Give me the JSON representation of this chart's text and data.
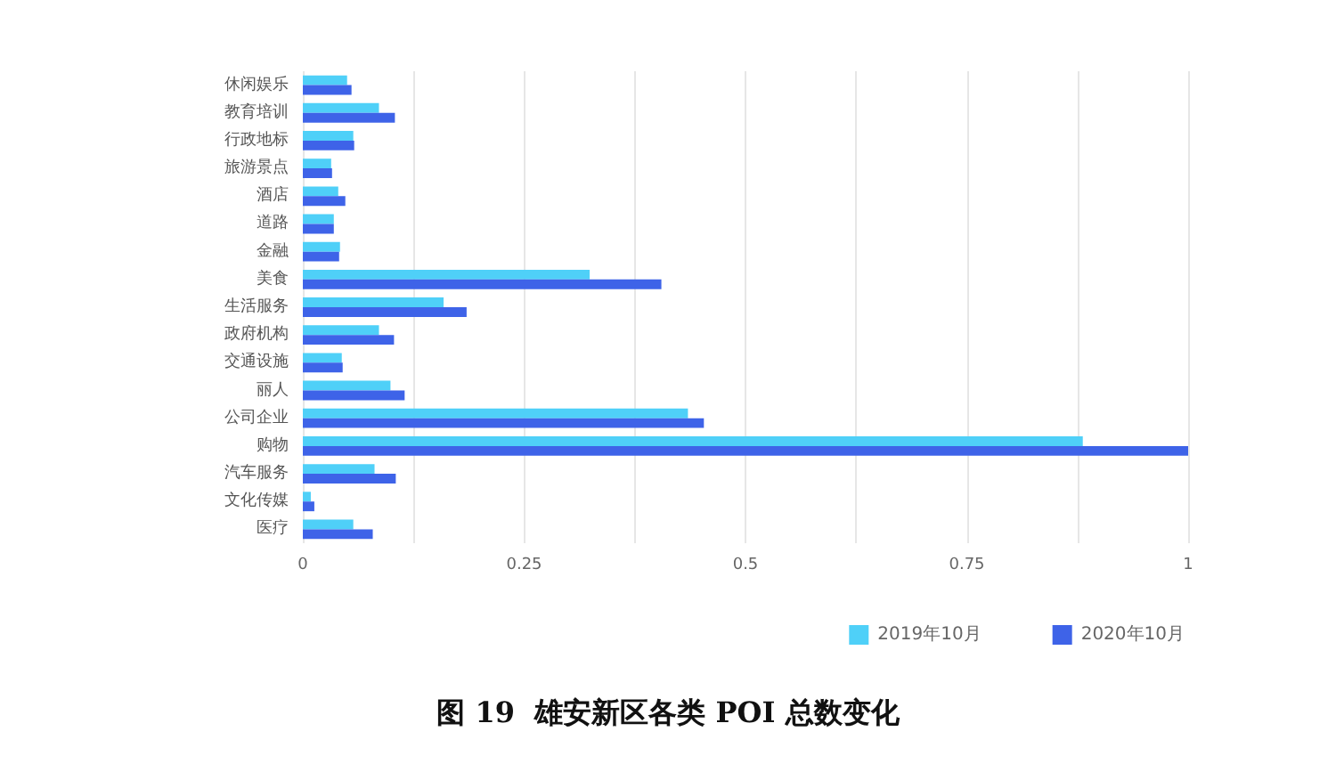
{
  "chart_data": {
    "type": "bar",
    "orientation": "horizontal",
    "title": "图 19  雄安新区各类 POI 总数变化",
    "categories": [
      "休闲娱乐",
      "教育培训",
      "行政地标",
      "旅游景点",
      "酒店",
      "道路",
      "金融",
      "美食",
      "生活服务",
      "政府机构",
      "交通设施",
      "丽人",
      "公司企业",
      "购物",
      "汽车服务",
      "文化传媒",
      "医疗"
    ],
    "series": [
      {
        "name": "2019年10月",
        "color": "#4fd0f8",
        "values": [
          0.05,
          0.086,
          0.057,
          0.032,
          0.04,
          0.035,
          0.042,
          0.324,
          0.159,
          0.086,
          0.044,
          0.099,
          0.435,
          0.881,
          0.081,
          0.009,
          0.057
        ]
      },
      {
        "name": "2020年10月",
        "color": "#3e63e8",
        "values": [
          0.055,
          0.104,
          0.058,
          0.033,
          0.048,
          0.035,
          0.041,
          0.405,
          0.185,
          0.103,
          0.045,
          0.115,
          0.453,
          1,
          0.105,
          0.013,
          0.079
        ]
      }
    ],
    "xlim": [
      0,
      1
    ],
    "xticks": [
      0,
      {
        "value": 0.125,
        "label": null
      },
      0.25,
      {
        "value": 0.375,
        "label": null
      },
      0.5,
      {
        "value": 0.625,
        "label": null
      },
      0.75,
      {
        "value": 0.875,
        "label": null
      },
      1
    ],
    "grid": "x",
    "legend": "bottom right"
  }
}
